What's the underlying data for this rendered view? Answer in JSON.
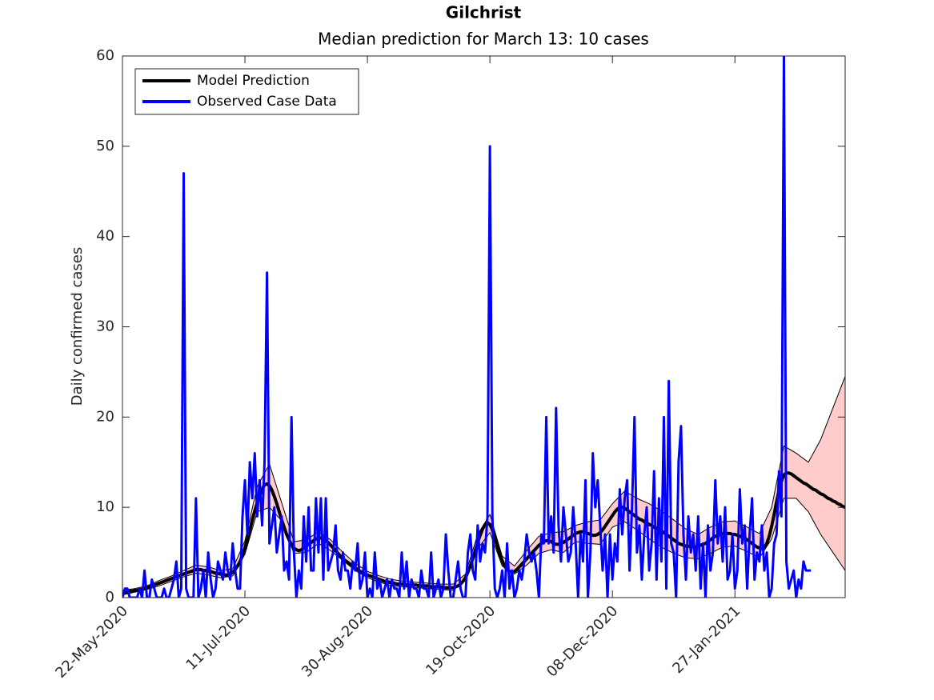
{
  "chart_data": {
    "type": "line",
    "title": "Gilchrist",
    "subtitle": "Median prediction for March 13: 10 cases",
    "y_label": "Daily confirmed cases",
    "legend": "upper left",
    "xlim": [
      "2020-05-22",
      "2021-03-13"
    ],
    "ylim": [
      0,
      60
    ],
    "yticks": [
      0,
      10,
      20,
      30,
      40,
      50,
      60
    ],
    "xticks": [
      {
        "value": "2020-05-22",
        "label": "22-May-2020"
      },
      {
        "value": "2020-07-11",
        "label": "11-Jul-2020"
      },
      {
        "value": "2020-08-30",
        "label": "30-Aug-2020"
      },
      {
        "value": "2020-10-19",
        "label": "19-Oct-2020"
      },
      {
        "value": "2020-12-08",
        "label": "08-Dec-2020"
      },
      {
        "value": "2021-01-27",
        "label": "27-Jan-2021"
      }
    ],
    "x": [
      "2020-05-22",
      "2020-05-23",
      "2020-05-24",
      "2020-05-25",
      "2020-05-26",
      "2020-05-27",
      "2020-05-28",
      "2020-05-29",
      "2020-05-30",
      "2020-05-31",
      "2020-06-01",
      "2020-06-02",
      "2020-06-03",
      "2020-06-04",
      "2020-06-05",
      "2020-06-06",
      "2020-06-07",
      "2020-06-08",
      "2020-06-09",
      "2020-06-10",
      "2020-06-11",
      "2020-06-12",
      "2020-06-13",
      "2020-06-14",
      "2020-06-15",
      "2020-06-16",
      "2020-06-17",
      "2020-06-18",
      "2020-06-19",
      "2020-06-20",
      "2020-06-21",
      "2020-06-22",
      "2020-06-23",
      "2020-06-24",
      "2020-06-25",
      "2020-06-26",
      "2020-06-27",
      "2020-06-28",
      "2020-06-29",
      "2020-06-30",
      "2020-07-01",
      "2020-07-02",
      "2020-07-03",
      "2020-07-04",
      "2020-07-05",
      "2020-07-06",
      "2020-07-07",
      "2020-07-08",
      "2020-07-09",
      "2020-07-10",
      "2020-07-11",
      "2020-07-12",
      "2020-07-13",
      "2020-07-14",
      "2020-07-15",
      "2020-07-16",
      "2020-07-17",
      "2020-07-18",
      "2020-07-19",
      "2020-07-20",
      "2020-07-21",
      "2020-07-22",
      "2020-07-23",
      "2020-07-24",
      "2020-07-25",
      "2020-07-26",
      "2020-07-27",
      "2020-07-28",
      "2020-07-29",
      "2020-07-30",
      "2020-07-31",
      "2020-08-01",
      "2020-08-02",
      "2020-08-03",
      "2020-08-04",
      "2020-08-05",
      "2020-08-06",
      "2020-08-07",
      "2020-08-08",
      "2020-08-09",
      "2020-08-10",
      "2020-08-11",
      "2020-08-12",
      "2020-08-13",
      "2020-08-14",
      "2020-08-15",
      "2020-08-16",
      "2020-08-17",
      "2020-08-18",
      "2020-08-19",
      "2020-08-20",
      "2020-08-21",
      "2020-08-22",
      "2020-08-23",
      "2020-08-24",
      "2020-08-25",
      "2020-08-26",
      "2020-08-27",
      "2020-08-28",
      "2020-08-29",
      "2020-08-30",
      "2020-08-31",
      "2020-09-01",
      "2020-09-02",
      "2020-09-03",
      "2020-09-04",
      "2020-09-05",
      "2020-09-06",
      "2020-09-07",
      "2020-09-08",
      "2020-09-09",
      "2020-09-10",
      "2020-09-11",
      "2020-09-12",
      "2020-09-13",
      "2020-09-14",
      "2020-09-15",
      "2020-09-16",
      "2020-09-17",
      "2020-09-18",
      "2020-09-19",
      "2020-09-20",
      "2020-09-21",
      "2020-09-22",
      "2020-09-23",
      "2020-09-24",
      "2020-09-25",
      "2020-09-26",
      "2020-09-27",
      "2020-09-28",
      "2020-09-29",
      "2020-09-30",
      "2020-10-01",
      "2020-10-02",
      "2020-10-03",
      "2020-10-04",
      "2020-10-05",
      "2020-10-06",
      "2020-10-07",
      "2020-10-08",
      "2020-10-09",
      "2020-10-10",
      "2020-10-11",
      "2020-10-12",
      "2020-10-13",
      "2020-10-14",
      "2020-10-15",
      "2020-10-16",
      "2020-10-17",
      "2020-10-18",
      "2020-10-19",
      "2020-10-20",
      "2020-10-21",
      "2020-10-22",
      "2020-10-23",
      "2020-10-24",
      "2020-10-25",
      "2020-10-26",
      "2020-10-27",
      "2020-10-28",
      "2020-10-29",
      "2020-10-30",
      "2020-10-31",
      "2020-11-01",
      "2020-11-02",
      "2020-11-03",
      "2020-11-04",
      "2020-11-05",
      "2020-11-06",
      "2020-11-07",
      "2020-11-08",
      "2020-11-09",
      "2020-11-10",
      "2020-11-11",
      "2020-11-12",
      "2020-11-13",
      "2020-11-14",
      "2020-11-15",
      "2020-11-16",
      "2020-11-17",
      "2020-11-18",
      "2020-11-19",
      "2020-11-20",
      "2020-11-21",
      "2020-11-22",
      "2020-11-23",
      "2020-11-24",
      "2020-11-25",
      "2020-11-26",
      "2020-11-27",
      "2020-11-28",
      "2020-11-29",
      "2020-11-30",
      "2020-12-01",
      "2020-12-02",
      "2020-12-03",
      "2020-12-04",
      "2020-12-05",
      "2020-12-06",
      "2020-12-07",
      "2020-12-08",
      "2020-12-09",
      "2020-12-10",
      "2020-12-11",
      "2020-12-12",
      "2020-12-13",
      "2020-12-14",
      "2020-12-15",
      "2020-12-16",
      "2020-12-17",
      "2020-12-18",
      "2020-12-19",
      "2020-12-20",
      "2020-12-21",
      "2020-12-22",
      "2020-12-23",
      "2020-12-24",
      "2020-12-25",
      "2020-12-26",
      "2020-12-27",
      "2020-12-28",
      "2020-12-29",
      "2020-12-30",
      "2020-12-31",
      "2021-01-01",
      "2021-01-02",
      "2021-01-03",
      "2021-01-04",
      "2021-01-05",
      "2021-01-06",
      "2021-01-07",
      "2021-01-08",
      "2021-01-09",
      "2021-01-10",
      "2021-01-11",
      "2021-01-12",
      "2021-01-13",
      "2021-01-14",
      "2021-01-15",
      "2021-01-16",
      "2021-01-17",
      "2021-01-18",
      "2021-01-19",
      "2021-01-20",
      "2021-01-21",
      "2021-01-22",
      "2021-01-23",
      "2021-01-24",
      "2021-01-25",
      "2021-01-26",
      "2021-01-27",
      "2021-01-28",
      "2021-01-29",
      "2021-01-30",
      "2021-01-31",
      "2021-02-01",
      "2021-02-02",
      "2021-02-03",
      "2021-02-04",
      "2021-02-05",
      "2021-02-06",
      "2021-02-07",
      "2021-02-08",
      "2021-02-09",
      "2021-02-10",
      "2021-02-11",
      "2021-02-12",
      "2021-02-13",
      "2021-02-14",
      "2021-02-15",
      "2021-02-16",
      "2021-02-17",
      "2021-02-18",
      "2021-02-19",
      "2021-02-20",
      "2021-02-21",
      "2021-02-22",
      "2021-02-23",
      "2021-02-24",
      "2021-02-25",
      "2021-02-26",
      "2021-02-27",
      "2021-02-28",
      "2021-03-01",
      "2021-03-02",
      "2021-03-03",
      "2021-03-04",
      "2021-03-05",
      "2021-03-06",
      "2021-03-07",
      "2021-03-08",
      "2021-03-09",
      "2021-03-10",
      "2021-03-11",
      "2021-03-12",
      "2021-03-13"
    ],
    "series": [
      {
        "name": "Model Prediction",
        "color": "#000000",
        "values": [
          0.5,
          0.6,
          0.6,
          0.7,
          0.7,
          0.8,
          0.8,
          0.9,
          0.9,
          1.0,
          1.1,
          1.2,
          1.3,
          1.4,
          1.5,
          1.6,
          1.7,
          1.8,
          1.9,
          2.0,
          2.1,
          2.2,
          2.3,
          2.4,
          2.5,
          2.6,
          2.7,
          2.8,
          2.9,
          3.0,
          3.1,
          3.1,
          3.1,
          3.0,
          3.0,
          2.9,
          2.9,
          2.8,
          2.7,
          2.7,
          2.6,
          2.6,
          2.5,
          2.5,
          2.6,
          2.8,
          3.1,
          3.5,
          4.0,
          4.7,
          5.5,
          6.5,
          7.5,
          8.6,
          9.6,
          10.5,
          11.3,
          12.0,
          12.5,
          12.6,
          12.4,
          11.9,
          11.2,
          10.4,
          9.5,
          8.6,
          7.8,
          7.0,
          6.4,
          5.9,
          5.5,
          5.3,
          5.2,
          5.3,
          5.5,
          5.7,
          5.9,
          6.1,
          6.3,
          6.5,
          6.6,
          6.6,
          6.5,
          6.3,
          6.1,
          5.8,
          5.5,
          5.2,
          4.9,
          4.6,
          4.3,
          4.1,
          3.9,
          3.7,
          3.5,
          3.3,
          3.1,
          2.9,
          2.8,
          2.6,
          2.5,
          2.4,
          2.3,
          2.2,
          2.1,
          2.0,
          1.9,
          1.8,
          1.8,
          1.7,
          1.6,
          1.6,
          1.5,
          1.5,
          1.5,
          1.5,
          1.4,
          1.4,
          1.4,
          1.4,
          1.4,
          1.3,
          1.3,
          1.3,
          1.3,
          1.3,
          1.2,
          1.2,
          1.2,
          1.2,
          1.2,
          1.1,
          1.1,
          1.1,
          1.1,
          1.1,
          1.2,
          1.3,
          1.5,
          1.8,
          2.2,
          2.8,
          3.5,
          4.3,
          5.2,
          6.1,
          6.9,
          7.6,
          8.1,
          8.3,
          8.1,
          7.5,
          6.6,
          5.7,
          4.8,
          4.1,
          3.5,
          3.1,
          2.9,
          2.8,
          2.9,
          3.1,
          3.4,
          3.7,
          4.0,
          4.3,
          4.6,
          4.9,
          5.2,
          5.5,
          5.8,
          6.0,
          6.2,
          6.3,
          6.3,
          6.2,
          6.0,
          5.9,
          5.9,
          6.0,
          6.1,
          6.3,
          6.5,
          6.7,
          6.9,
          7.1,
          7.2,
          7.3,
          7.3,
          7.2,
          7.1,
          7.0,
          6.9,
          6.9,
          7.0,
          7.2,
          7.5,
          7.9,
          8.3,
          8.7,
          9.1,
          9.5,
          9.8,
          10.0,
          10.0,
          9.9,
          9.7,
          9.5,
          9.3,
          9.1,
          8.9,
          8.7,
          8.6,
          8.4,
          8.3,
          8.1,
          8.0,
          7.8,
          7.7,
          7.5,
          7.4,
          7.2,
          7.0,
          6.8,
          6.6,
          6.4,
          6.2,
          6.0,
          5.9,
          5.8,
          5.7,
          5.7,
          5.6,
          5.6,
          5.6,
          5.7,
          5.8,
          5.9,
          6.0,
          6.2,
          6.4,
          6.6,
          6.8,
          6.9,
          7.0,
          7.1,
          7.1,
          7.1,
          7.1,
          7.0,
          7.0,
          6.9,
          6.8,
          6.7,
          6.6,
          6.4,
          6.2,
          6.0,
          5.8,
          5.6,
          5.5,
          5.4,
          5.5,
          6.0,
          6.8,
          7.9,
          9.2,
          10.6,
          11.9,
          12.9,
          13.6,
          13.8,
          13.8,
          13.7,
          13.5,
          13.3,
          13.1,
          12.9,
          12.7,
          12.6,
          12.4,
          12.2,
          12.0,
          11.9,
          11.7,
          11.5,
          11.4,
          11.2,
          11.0,
          10.9,
          10.7,
          10.6,
          10.4,
          10.3,
          10.1,
          10.0
        ]
      },
      {
        "name": "Observed Case Data",
        "color": "#0000ff",
        "values": [
          0,
          1,
          1,
          0,
          0,
          0,
          0,
          1,
          0,
          3,
          0,
          0,
          2,
          1,
          0,
          0,
          0,
          1,
          0,
          0,
          1,
          2,
          4,
          0,
          1,
          47,
          1,
          0,
          0,
          0,
          11,
          0,
          1,
          3,
          0,
          5,
          2,
          0,
          1,
          4,
          3,
          2,
          5,
          3,
          2,
          6,
          3,
          1,
          1,
          9,
          13,
          7,
          15,
          11,
          16,
          9,
          13,
          8,
          15,
          36,
          6,
          8,
          10,
          5,
          7,
          9,
          3,
          4,
          2,
          20,
          5,
          0,
          3,
          1,
          9,
          4,
          10,
          3,
          3,
          11,
          5,
          11,
          2,
          11,
          3,
          4,
          5,
          8,
          3,
          2,
          5,
          3,
          3,
          1,
          4,
          3,
          6,
          1,
          2,
          5,
          0,
          1,
          0,
          5,
          1,
          2,
          0,
          1,
          2,
          0,
          2,
          1,
          1,
          0,
          5,
          1,
          4,
          0,
          2,
          1,
          1,
          0,
          3,
          1,
          1,
          0,
          5,
          0,
          1,
          2,
          0,
          1,
          7,
          3,
          0,
          0,
          2,
          4,
          1,
          0,
          0,
          5,
          7,
          3,
          2,
          8,
          4,
          6,
          5,
          9,
          50,
          9,
          1,
          0,
          1,
          3,
          0,
          6,
          1,
          3,
          0,
          1,
          3,
          2,
          4,
          7,
          5,
          4,
          5,
          3,
          0,
          7,
          6,
          20,
          6,
          9,
          5,
          21,
          8,
          4,
          10,
          7,
          4,
          5,
          10,
          6,
          0,
          7,
          4,
          13,
          0,
          5,
          16,
          10,
          13,
          8,
          3,
          7,
          0,
          7,
          2,
          6,
          4,
          12,
          7,
          11,
          13,
          3,
          10,
          20,
          5,
          8,
          2,
          7,
          10,
          3,
          6,
          14,
          2,
          11,
          4,
          20,
          1,
          24,
          6,
          5,
          0,
          15,
          19,
          7,
          2,
          9,
          5,
          7,
          3,
          9,
          1,
          6,
          0,
          8,
          3,
          5,
          13,
          6,
          9,
          4,
          10,
          2,
          3,
          7,
          1,
          3,
          12,
          6,
          8,
          1,
          7,
          11,
          2,
          5,
          4,
          8,
          3,
          5,
          0,
          1,
          6,
          7,
          14,
          9,
          60,
          4,
          1,
          2,
          3,
          0,
          2,
          1,
          4,
          3,
          3,
          3,
          null,
          null,
          null,
          null,
          null,
          null,
          null,
          null,
          null,
          null,
          null,
          null,
          null,
          null
        ]
      }
    ],
    "band": {
      "color": "#ffcccc",
      "line_color": "#000000",
      "x": [
        "2020-05-22",
        "2020-05-27",
        "2020-06-01",
        "2020-06-06",
        "2020-06-11",
        "2020-06-16",
        "2020-06-21",
        "2020-06-26",
        "2020-07-01",
        "2020-07-06",
        "2020-07-11",
        "2020-07-16",
        "2020-07-21",
        "2020-07-26",
        "2020-07-31",
        "2020-08-05",
        "2020-08-10",
        "2020-08-15",
        "2020-08-20",
        "2020-08-25",
        "2020-08-30",
        "2020-09-04",
        "2020-09-09",
        "2020-09-14",
        "2020-09-19",
        "2020-09-24",
        "2020-09-29",
        "2020-10-04",
        "2020-10-09",
        "2020-10-14",
        "2020-10-19",
        "2020-10-24",
        "2020-10-29",
        "2020-11-03",
        "2020-11-08",
        "2020-11-13",
        "2020-11-18",
        "2020-11-23",
        "2020-11-28",
        "2020-12-03",
        "2020-12-08",
        "2020-12-13",
        "2020-12-18",
        "2020-12-23",
        "2020-12-28",
        "2021-01-02",
        "2021-01-07",
        "2021-01-12",
        "2021-01-17",
        "2021-01-22",
        "2021-01-27",
        "2021-02-01",
        "2021-02-06",
        "2021-02-11",
        "2021-02-16",
        "2021-02-21",
        "2021-02-26",
        "2021-03-03",
        "2021-03-08",
        "2021-03-13"
      ],
      "upper": [
        0.8,
        1.0,
        1.3,
        1.9,
        2.4,
        3.0,
        3.6,
        3.4,
        3.0,
        3.2,
        6.3,
        12.3,
        14.8,
        10.5,
        6.2,
        6.4,
        7.3,
        6.4,
        5.0,
        3.8,
        2.9,
        2.4,
        2.0,
        1.8,
        1.7,
        1.6,
        1.5,
        1.5,
        2.6,
        7.0,
        9.2,
        4.6,
        3.5,
        5.2,
        6.8,
        7.2,
        7.3,
        8.0,
        8.4,
        8.6,
        10.4,
        11.8,
        11.0,
        10.4,
        9.6,
        8.6,
        7.6,
        7.0,
        7.8,
        8.4,
        8.5,
        7.8,
        7.1,
        10.0,
        16.8,
        16.0,
        15.0,
        17.5,
        21.0,
        24.5
      ],
      "lower": [
        0.3,
        0.6,
        0.9,
        1.3,
        1.8,
        2.3,
        2.7,
        2.5,
        2.2,
        2.4,
        4.8,
        9.5,
        10.0,
        8.5,
        4.9,
        5.0,
        6.0,
        5.2,
        4.1,
        3.0,
        2.2,
        1.7,
        1.3,
        1.2,
        1.1,
        1.0,
        0.9,
        0.8,
        1.9,
        5.4,
        7.2,
        3.5,
        2.6,
        3.6,
        4.9,
        5.3,
        5.0,
        6.2,
        6.0,
        5.9,
        7.8,
        8.4,
        7.5,
        6.5,
        5.6,
        4.9,
        4.4,
        4.3,
        4.9,
        5.6,
        5.7,
        5.1,
        4.4,
        6.5,
        11.0,
        11.0,
        9.5,
        7.0,
        5.0,
        3.0
      ]
    }
  }
}
